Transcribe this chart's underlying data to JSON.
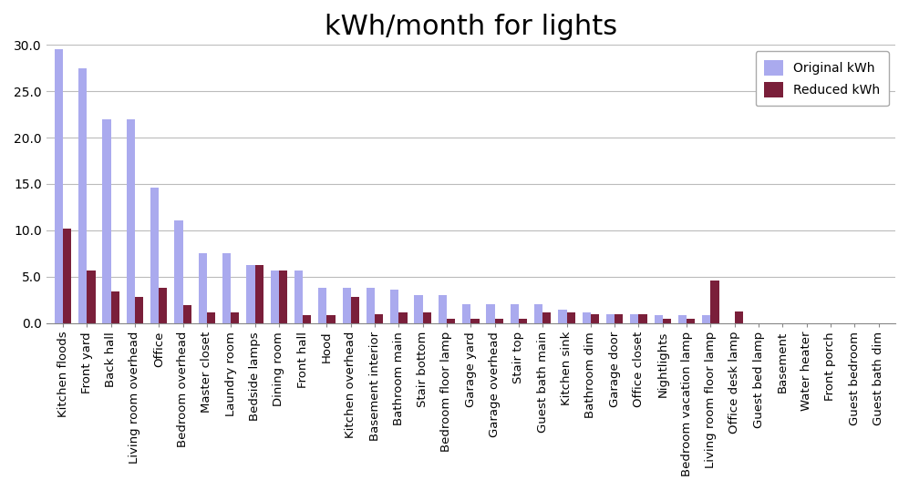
{
  "title": "kWh/month for lights",
  "categories": [
    "Kitchen floods",
    "Front yard",
    "Back hall",
    "Living room overhead",
    "Office",
    "Bedroom overhead",
    "Master closet",
    "Laundry room",
    "Bedside lamps",
    "Dining room",
    "Front hall",
    "Hood",
    "Kitchen overhead",
    "Basement interior",
    "Bathroom main",
    "Stair bottom",
    "Bedroom floor lamp",
    "Garage yard",
    "Garage overhead",
    "Stair top",
    "Guest bath main",
    "Kitchen sink",
    "Bathroom dim",
    "Garage door",
    "Office closet",
    "Nightlights",
    "Bedroom vacation lamp",
    "Living room floor lamp",
    "Office desk lamp",
    "Guest bed lamp",
    "Basement",
    "Water heater",
    "Front porch",
    "Guest bedroom",
    "Guest bath dim"
  ],
  "original": [
    29.5,
    27.5,
    22.0,
    22.0,
    14.6,
    11.1,
    7.5,
    7.5,
    6.3,
    5.7,
    5.7,
    3.8,
    3.8,
    3.8,
    3.6,
    3.0,
    3.0,
    2.0,
    2.0,
    2.0,
    2.0,
    1.5,
    1.2,
    1.0,
    1.0,
    0.9,
    0.9,
    0.9,
    0.0,
    0.0,
    0.0,
    0.0,
    0.0,
    0.0,
    0.0
  ],
  "reduced": [
    10.2,
    5.7,
    3.4,
    2.8,
    3.8,
    1.9,
    1.2,
    1.2,
    6.3,
    5.7,
    0.9,
    0.9,
    2.8,
    1.0,
    1.2,
    1.2,
    0.5,
    0.5,
    0.5,
    0.5,
    1.2,
    1.2,
    1.0,
    1.0,
    1.0,
    0.5,
    0.5,
    4.6,
    1.3,
    0.0,
    0.0,
    0.0,
    0.0,
    0.0,
    0.0
  ],
  "bar_color_original": "#aaaaee",
  "bar_color_reduced": "#7a1f3a",
  "legend_labels": [
    "Original kWh",
    "Reduced kWh"
  ],
  "ylim": [
    0,
    30.0
  ],
  "yticks": [
    0.0,
    5.0,
    10.0,
    15.0,
    20.0,
    25.0,
    30.0
  ],
  "background_color": "#ffffff",
  "grid_color": "#bbbbbb",
  "title_fontsize": 22,
  "xlabel_fontsize": 9.5
}
